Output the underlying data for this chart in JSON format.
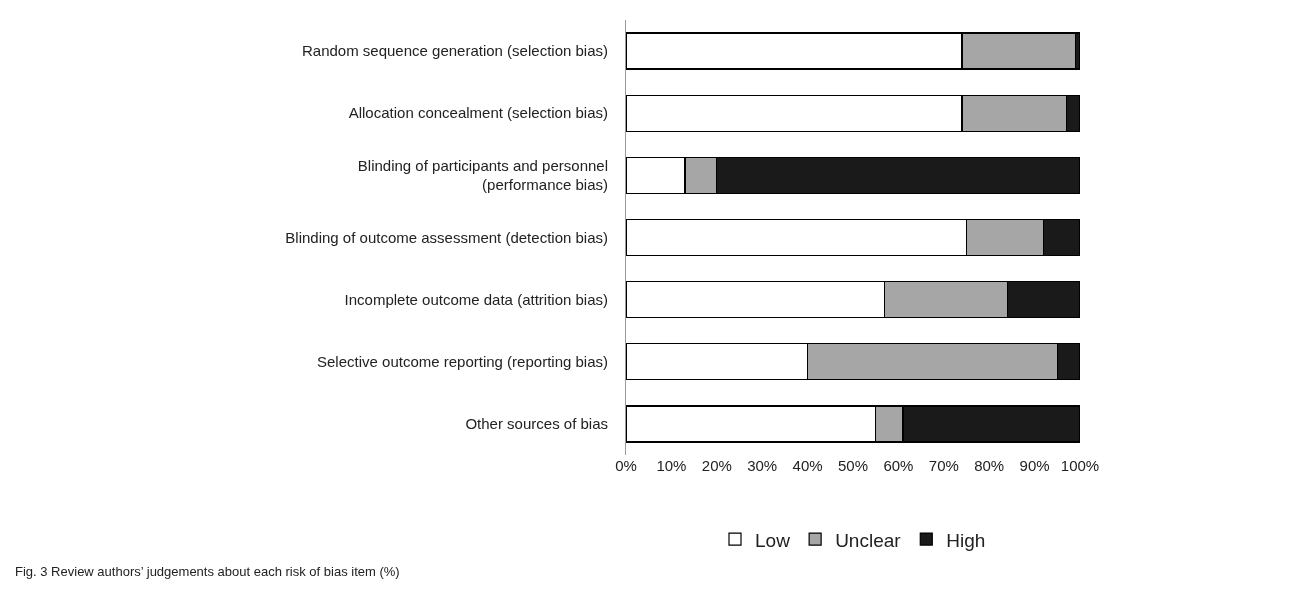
{
  "chart_data": {
    "type": "bar",
    "orientation": "horizontal",
    "stacked": true,
    "categories": [
      "Random sequence generation (selection bias)",
      "Allocation concealment (selection bias)",
      "Blinding of participants and personnel\n(performance bias)",
      "Blinding of outcome assessment (detection bias)",
      "Incomplete outcome data (attrition bias)",
      "Selective outcome reporting (reporting bias)",
      "Other sources of bias"
    ],
    "series": [
      {
        "name": "Low",
        "color": "#ffffff",
        "values": [
          74,
          74,
          13,
          75,
          57,
          40,
          55
        ]
      },
      {
        "name": "Unclear",
        "color": "#a6a6a6",
        "values": [
          25,
          23,
          7,
          17,
          27,
          55,
          6
        ]
      },
      {
        "name": "High",
        "color": "#1a1a1a",
        "values": [
          1,
          3,
          80,
          8,
          16,
          5,
          39
        ]
      }
    ],
    "xlim": [
      0,
      100
    ],
    "xticks": [
      {
        "value": 0,
        "label": "0%"
      },
      {
        "value": 10,
        "label": "10%"
      },
      {
        "value": 20,
        "label": "20%"
      },
      {
        "value": 30,
        "label": "30%"
      },
      {
        "value": 40,
        "label": "40%"
      },
      {
        "value": 50,
        "label": "50%"
      },
      {
        "value": 60,
        "label": "60%"
      },
      {
        "value": 70,
        "label": "70%"
      },
      {
        "value": 80,
        "label": "80%"
      },
      {
        "value": 90,
        "label": "90%"
      },
      {
        "value": 100,
        "label": "100%"
      }
    ],
    "grid": false,
    "legend": "bottom",
    "annotations": [
      "Fig. 3 Review authors’ judgements about each risk of bias item (%)"
    ]
  }
}
